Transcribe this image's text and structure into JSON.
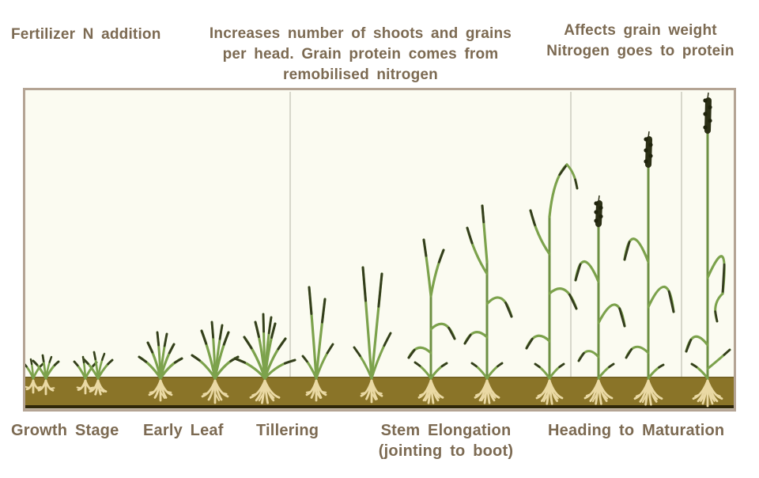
{
  "header_notes": {
    "fertilizer": "Fertilizer N addition",
    "shoots_lines": [
      "Increases number of shoots and grains",
      "per head. Grain protein comes from",
      "remobilised nitrogen"
    ],
    "grain_lines": [
      "Affects grain weight",
      "Nitrogen goes to protein"
    ]
  },
  "stage_labels": {
    "growth_stage": "Growth Stage",
    "early_leaf": "Early Leaf",
    "tillering": "Tillering",
    "stem_elongation": "Stem Elongation",
    "stem_elongation_sub": "(jointing to boot)",
    "heading_maturation": "Heading to Maturation"
  },
  "colors": {
    "text": "#7c6a52",
    "panel_bg": "#fbfbf1",
    "panel_border": "#b4a494",
    "divider": "#d7d7cb",
    "soil": "#8a7428",
    "soil_edge": "#6f5d20",
    "soil_baseline": "#2f2709",
    "soil_strip": "#d9d1c0",
    "leaf": "#7ca24c",
    "leaf_dark": "#343d1d",
    "stem": "#6e9044",
    "head": "#2b2f15",
    "head_bump": "#1f230c",
    "root": "#ead9a4"
  }
}
